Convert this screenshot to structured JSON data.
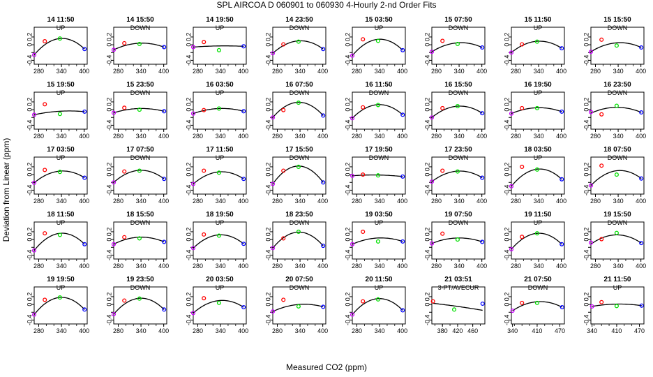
{
  "figure": {
    "title": "SPL   AIRCOA D    060901 to 060930   4-Hourly 2-nd Order Fits",
    "xlabel": "Measured CO2 (ppm)",
    "ylabel": "Deviation from Linear (ppm)"
  },
  "colors": {
    "red": "#ff0000",
    "green": "#00e000",
    "blue": "#0000ff",
    "purple": "#cc00ff",
    "curve": "#000000"
  },
  "chart_data": {
    "type": "scatter",
    "series_names": [
      "tank-purple",
      "tank-red",
      "tank-green",
      "tank-blue"
    ],
    "ylim": [
      -0.5,
      0.45
    ],
    "yticks": [
      -0.4,
      -0.2,
      0,
      0.2
    ],
    "ytick_labels": [
      "-0.4",
      "",
      "0",
      "0.2"
    ],
    "default_xlim": [
      268,
      408
    ],
    "default_xticks": [
      280,
      340,
      400
    ],
    "panels": [
      {
        "title": "14 11:50",
        "mode": "UP",
        "pts": [
          [
            268,
            -0.26
          ],
          [
            296,
            0.09
          ],
          [
            336,
            0.16
          ],
          [
            401,
            -0.11
          ]
        ],
        "fit": [
          268,
          -0.26,
          336,
          0.16,
          401,
          -0.11
        ]
      },
      {
        "title": "14 15:50",
        "mode": "DOWN",
        "pts": [
          [
            268,
            -0.13
          ],
          [
            296,
            0.04
          ],
          [
            336,
            0.02
          ],
          [
            401,
            -0.06
          ]
        ],
        "fit": [
          268,
          -0.13,
          336,
          0.04,
          401,
          -0.06
        ]
      },
      {
        "title": "14 19:50",
        "mode": "UP",
        "pts": [
          [
            268,
            -0.06
          ],
          [
            296,
            0.07
          ],
          [
            336,
            -0.14
          ],
          [
            401,
            -0.04
          ]
        ],
        "fit": [
          268,
          -0.06,
          336,
          -0.03,
          401,
          -0.04
        ]
      },
      {
        "title": "14 23:50",
        "mode": "DOWN",
        "pts": [
          [
            268,
            -0.22
          ],
          [
            296,
            0.01
          ],
          [
            336,
            0.08
          ],
          [
            401,
            -0.11
          ]
        ],
        "fit": [
          268,
          -0.22,
          336,
          0.1,
          401,
          -0.11
        ]
      },
      {
        "title": "15 03:50",
        "mode": "UP",
        "pts": [
          [
            268,
            -0.28
          ],
          [
            296,
            0.14
          ],
          [
            336,
            0.1
          ],
          [
            401,
            -0.14
          ]
        ],
        "fit": [
          268,
          -0.28,
          336,
          0.14,
          401,
          -0.14
        ]
      },
      {
        "title": "15 07:50",
        "mode": "DOWN",
        "pts": [
          [
            268,
            -0.18
          ],
          [
            296,
            0.1
          ],
          [
            336,
            0.02
          ],
          [
            401,
            -0.07
          ]
        ],
        "fit": [
          268,
          -0.18,
          336,
          0.05,
          401,
          -0.07
        ]
      },
      {
        "title": "15 11:50",
        "mode": "UP",
        "pts": [
          [
            268,
            -0.2
          ],
          [
            296,
            0.01
          ],
          [
            336,
            0.08
          ],
          [
            401,
            -0.09
          ]
        ],
        "fit": [
          268,
          -0.2,
          336,
          0.09,
          401,
          -0.09
        ]
      },
      {
        "title": "15 15:50",
        "mode": "DOWN",
        "pts": [
          [
            268,
            -0.18
          ],
          [
            296,
            0.13
          ],
          [
            336,
            -0.02
          ],
          [
            401,
            -0.07
          ]
        ],
        "fit": [
          268,
          -0.18,
          336,
          0.05,
          401,
          -0.07
        ]
      },
      {
        "title": "15 19:50",
        "mode": "UP",
        "pts": [
          [
            268,
            -0.13
          ],
          [
            296,
            0.14
          ],
          [
            336,
            -0.11
          ],
          [
            401,
            -0.05
          ]
        ],
        "fit": [
          268,
          -0.13,
          336,
          -0.04,
          401,
          -0.05
        ]
      },
      {
        "title": "15 23:50",
        "mode": "DOWN",
        "pts": [
          [
            268,
            -0.08
          ],
          [
            296,
            0.05
          ],
          [
            336,
            0.0
          ],
          [
            401,
            -0.04
          ]
        ],
        "fit": [
          268,
          -0.08,
          336,
          0.03,
          401,
          -0.04
        ]
      },
      {
        "title": "16 03:50",
        "mode": "UP",
        "pts": [
          [
            268,
            -0.1
          ],
          [
            296,
            -0.01
          ],
          [
            336,
            0.03
          ],
          [
            401,
            -0.04
          ]
        ],
        "fit": [
          268,
          -0.1,
          336,
          0.03,
          401,
          -0.04
        ]
      },
      {
        "title": "16 07:50",
        "mode": "DOWN",
        "pts": [
          [
            268,
            -0.2
          ],
          [
            296,
            -0.01
          ],
          [
            336,
            0.18
          ],
          [
            401,
            -0.15
          ]
        ],
        "fit": [
          268,
          -0.2,
          336,
          0.19,
          401,
          -0.15
        ]
      },
      {
        "title": "16 11:50",
        "mode": "DOWN",
        "pts": [
          [
            268,
            -0.22
          ],
          [
            296,
            0.06
          ],
          [
            336,
            0.12
          ],
          [
            401,
            -0.13
          ]
        ],
        "fit": [
          268,
          -0.22,
          336,
          0.13,
          401,
          -0.13
        ]
      },
      {
        "title": "16 15:50",
        "mode": "DOWN",
        "pts": [
          [
            268,
            -0.2
          ],
          [
            296,
            0.04
          ],
          [
            336,
            0.09
          ],
          [
            401,
            -0.09
          ]
        ],
        "fit": [
          268,
          -0.2,
          336,
          0.09,
          401,
          -0.09
        ]
      },
      {
        "title": "16 19:50",
        "mode": "UP",
        "pts": [
          [
            268,
            -0.1
          ],
          [
            296,
            0.04
          ],
          [
            336,
            0.04
          ],
          [
            401,
            -0.05
          ]
        ],
        "fit": [
          268,
          -0.1,
          336,
          0.05,
          401,
          -0.05
        ]
      },
      {
        "title": "16 23:50",
        "mode": "DOWN",
        "pts": [
          [
            268,
            -0.06
          ],
          [
            296,
            -0.12
          ],
          [
            336,
            0.1
          ],
          [
            401,
            -0.07
          ]
        ],
        "fit": [
          268,
          -0.09,
          336,
          0.06,
          401,
          -0.07
        ]
      },
      {
        "title": "17 03:50",
        "mode": "UP",
        "pts": [
          [
            268,
            -0.21
          ],
          [
            296,
            0.12
          ],
          [
            336,
            0.07
          ],
          [
            401,
            -0.08
          ]
        ],
        "fit": [
          268,
          -0.21,
          336,
          0.09,
          401,
          -0.08
        ]
      },
      {
        "title": "17 07:50",
        "mode": "DOWN",
        "pts": [
          [
            268,
            -0.2
          ],
          [
            296,
            0.08
          ],
          [
            336,
            0.1
          ],
          [
            401,
            -0.11
          ]
        ],
        "fit": [
          268,
          -0.2,
          336,
          0.11,
          401,
          -0.11
        ]
      },
      {
        "title": "17 11:50",
        "mode": "UP",
        "pts": [
          [
            268,
            -0.24
          ],
          [
            296,
            0.1
          ],
          [
            336,
            0.05
          ],
          [
            401,
            -0.11
          ]
        ],
        "fit": [
          268,
          -0.24,
          336,
          0.07,
          401,
          -0.11
        ]
      },
      {
        "title": "17 15:50",
        "mode": "DOWN",
        "pts": [
          [
            268,
            -0.24
          ],
          [
            296,
            0.1
          ],
          [
            336,
            0.2
          ],
          [
            401,
            -0.2
          ]
        ],
        "fit": [
          268,
          -0.24,
          336,
          0.22,
          401,
          -0.2
        ]
      },
      {
        "title": "17 19:50",
        "mode": "DOWN",
        "pts": [
          [
            268,
            -0.03
          ],
          [
            296,
            0.0
          ],
          [
            336,
            -0.02
          ],
          [
            401,
            -0.05
          ]
        ],
        "fit": [
          268,
          -0.03,
          336,
          -0.01,
          401,
          -0.05
        ]
      },
      {
        "title": "17 23:50",
        "mode": "DOWN",
        "pts": [
          [
            268,
            -0.18
          ],
          [
            296,
            0.1
          ],
          [
            336,
            0.08
          ],
          [
            401,
            -0.08
          ]
        ],
        "fit": [
          268,
          -0.18,
          336,
          0.09,
          401,
          -0.08
        ]
      },
      {
        "title": "18 03:50",
        "mode": "UP",
        "pts": [
          [
            268,
            -0.3
          ],
          [
            296,
            0.2
          ],
          [
            336,
            0.13
          ],
          [
            401,
            -0.12
          ]
        ],
        "fit": [
          268,
          -0.3,
          336,
          0.14,
          401,
          -0.12
        ]
      },
      {
        "title": "18 07:50",
        "mode": "DOWN",
        "pts": [
          [
            268,
            -0.28
          ],
          [
            296,
            0.23
          ],
          [
            336,
            0.0
          ],
          [
            401,
            -0.1
          ]
        ],
        "fit": [
          268,
          -0.28,
          336,
          0.1,
          401,
          -0.1
        ]
      },
      {
        "title": "18 11:50",
        "mode": "UP",
        "pts": [
          [
            268,
            -0.28
          ],
          [
            296,
            0.16
          ],
          [
            336,
            0.12
          ],
          [
            401,
            -0.12
          ]
        ],
        "fit": [
          268,
          -0.28,
          336,
          0.16,
          401,
          -0.12
        ]
      },
      {
        "title": "18 15:50",
        "mode": "DOWN",
        "pts": [
          [
            268,
            -0.12
          ],
          [
            296,
            0.06
          ],
          [
            336,
            0.03
          ],
          [
            401,
            -0.06
          ]
        ],
        "fit": [
          268,
          -0.12,
          336,
          0.06,
          401,
          -0.06
        ]
      },
      {
        "title": "18 19:50",
        "mode": "UP",
        "pts": [
          [
            268,
            -0.22
          ],
          [
            296,
            0.13
          ],
          [
            336,
            0.1
          ],
          [
            401,
            -0.11
          ]
        ],
        "fit": [
          268,
          -0.22,
          336,
          0.12,
          401,
          -0.11
        ]
      },
      {
        "title": "18 23:50",
        "mode": "DOWN",
        "pts": [
          [
            268,
            -0.22
          ],
          [
            296,
            0.03
          ],
          [
            336,
            0.2
          ],
          [
            401,
            -0.16
          ]
        ],
        "fit": [
          268,
          -0.22,
          336,
          0.19,
          401,
          -0.16
        ]
      },
      {
        "title": "19 03:50",
        "mode": "UP",
        "pts": [
          [
            268,
            -0.12
          ],
          [
            296,
            0.2
          ],
          [
            336,
            -0.05
          ],
          [
            401,
            -0.05
          ]
        ],
        "fit": [
          268,
          -0.12,
          336,
          0.04,
          401,
          -0.05
        ]
      },
      {
        "title": "19 07:50",
        "mode": "DOWN",
        "pts": [
          [
            268,
            -0.1
          ],
          [
            296,
            0.15
          ],
          [
            336,
            0.0
          ],
          [
            401,
            -0.06
          ]
        ],
        "fit": [
          268,
          -0.1,
          336,
          0.04,
          401,
          -0.06
        ]
      },
      {
        "title": "19 11:50",
        "mode": "UP",
        "pts": [
          [
            268,
            -0.25
          ],
          [
            296,
            0.07
          ],
          [
            336,
            0.16
          ],
          [
            401,
            -0.12
          ]
        ],
        "fit": [
          268,
          -0.25,
          336,
          0.16,
          401,
          -0.12
        ]
      },
      {
        "title": "19 15:50",
        "mode": "DOWN",
        "pts": [
          [
            268,
            -0.08
          ],
          [
            296,
            0.01
          ],
          [
            336,
            0.17
          ],
          [
            401,
            -0.09
          ]
        ],
        "fit": [
          268,
          -0.12,
          336,
          0.12,
          401,
          -0.09
        ]
      },
      {
        "title": "19 19:50",
        "mode": "UP",
        "pts": [
          [
            268,
            -0.26
          ],
          [
            296,
            0.12
          ],
          [
            336,
            0.18
          ],
          [
            401,
            -0.13
          ]
        ],
        "fit": [
          268,
          -0.26,
          336,
          0.18,
          401,
          -0.13
        ]
      },
      {
        "title": "19 23:50",
        "mode": "DOWN",
        "pts": [
          [
            268,
            -0.25
          ],
          [
            296,
            0.1
          ],
          [
            336,
            0.15
          ],
          [
            401,
            -0.13
          ]
        ],
        "fit": [
          268,
          -0.25,
          336,
          0.16,
          401,
          -0.13
        ]
      },
      {
        "title": "20 03:50",
        "mode": "UP",
        "pts": [
          [
            268,
            -0.22
          ],
          [
            296,
            0.16
          ],
          [
            336,
            0.04
          ],
          [
            401,
            -0.07
          ]
        ],
        "fit": [
          268,
          -0.22,
          336,
          0.1,
          401,
          -0.07
        ]
      },
      {
        "title": "20 07:50",
        "mode": "DOWN",
        "pts": [
          [
            268,
            -0.18
          ],
          [
            296,
            0.12
          ],
          [
            336,
            -0.05
          ],
          [
            401,
            -0.06
          ]
        ],
        "fit": [
          268,
          -0.18,
          336,
          0.0,
          401,
          -0.06
        ]
      },
      {
        "title": "20 11:50",
        "mode": "UP",
        "pts": [
          [
            268,
            -0.26
          ],
          [
            296,
            0.08
          ],
          [
            336,
            0.13
          ],
          [
            401,
            -0.15
          ]
        ],
        "fit": [
          268,
          -0.26,
          336,
          0.15,
          401,
          -0.15
        ]
      },
      {
        "title": "21 03:51",
        "mode": "3-PT/AVECUR",
        "xlim": [
          352,
          492
        ],
        "xticks": [
          380,
          420,
          460
        ],
        "pts": [
          [
            355,
            0.08
          ],
          [
            411,
            -0.13
          ],
          [
            486,
            0.02
          ]
        ],
        "fit": [
          355,
          0.03,
          420,
          -0.05,
          486,
          -0.15
        ]
      },
      {
        "title": "21 07:50",
        "mode": "DOWN",
        "xlim": [
          352,
          492
        ],
        "xticks": [
          340,
          410,
          470
        ],
        "xtick_pos": [
          355,
          420,
          480
        ],
        "pts": [
          [
            355,
            -0.16
          ],
          [
            380,
            0.04
          ],
          [
            420,
            0.04
          ],
          [
            486,
            -0.07
          ]
        ],
        "fit": [
          355,
          -0.16,
          420,
          0.07,
          486,
          -0.07
        ]
      },
      {
        "title": "21 11:50",
        "mode": "UP",
        "xlim": [
          352,
          492
        ],
        "xticks": [
          340,
          410,
          470
        ],
        "xtick_pos": [
          355,
          420,
          480
        ],
        "pts": [
          [
            355,
            -0.05
          ],
          [
            380,
            0.06
          ],
          [
            420,
            -0.04
          ],
          [
            486,
            -0.03
          ]
        ],
        "fit": [
          355,
          -0.05,
          420,
          0.01,
          486,
          -0.03
        ]
      }
    ]
  }
}
